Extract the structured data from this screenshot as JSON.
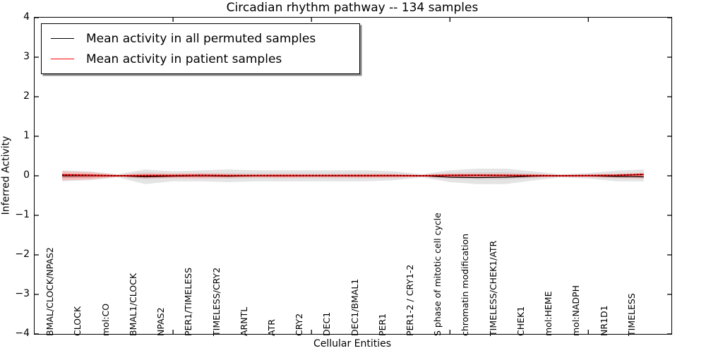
{
  "figure": {
    "background": "#ffffff"
  },
  "chart_data": {
    "type": "line",
    "title": "Circadian rhythm pathway -- 134 samples",
    "xlabel": "Cellular Entities",
    "ylabel": "Inferred Activity",
    "ylim": [
      -4,
      4
    ],
    "xlim": [
      0,
      23
    ],
    "grid": false,
    "legend_position": "upper-left",
    "ytick_values": [
      4,
      3,
      2,
      1,
      0,
      -1,
      -2,
      -3,
      -4
    ],
    "ytick_labels": [
      "4",
      "3",
      "2",
      "1",
      "0",
      "−1",
      "−2",
      "−3",
      "−4"
    ],
    "xtick_positions": [
      5,
      10,
      15,
      20
    ],
    "entities": [
      "BMAL/CLOCK/NPAS2",
      "CLOCK",
      "mol:CO",
      "BMAL1/CLOCK",
      "NPAS2",
      "PER1/TIMELESS",
      "TIMELESS/CRY2",
      "ARNTL",
      "ATR",
      "CRY2",
      "DEC1",
      "DEC1/BMAL1",
      "PER1",
      "PER1-2 / CRY1-2",
      "S phase of mitotic cell cycle",
      "chromatin modification",
      "TIMELESS/CHEK1/ATR",
      "CHEK1",
      "mol:HEME",
      "mol:NADPH",
      "NR1D1",
      "TIMELESS"
    ],
    "legend": [
      {
        "label": "Mean activity in all permuted samples",
        "color": "#000000"
      },
      {
        "label": "Mean activity in patient samples",
        "color": "#ff0000"
      }
    ],
    "series": [
      {
        "name": "Mean activity in all permuted samples",
        "color": "#000000",
        "style": "solid",
        "values": [
          0,
          0,
          0,
          -0.027,
          -0.01,
          0,
          -0.01,
          0,
          0,
          0,
          0,
          0,
          0,
          0,
          -0.036,
          -0.044,
          -0.036,
          -0.01,
          0,
          0,
          -0.018,
          -0.027
        ]
      },
      {
        "name": "Mean activity in patient samples",
        "color": "#ff0000",
        "style": "solid+black-dotted-overlay",
        "values": [
          0.02,
          0.01,
          0,
          0.005,
          0.005,
          0.01,
          0.005,
          0.005,
          0.005,
          0.005,
          0.005,
          0.005,
          0.005,
          0,
          0.01,
          0.015,
          0.01,
          0.005,
          0,
          0.005,
          0.01,
          0.035
        ]
      }
    ],
    "bands": [
      {
        "name": "permuted-envelope-outer",
        "color": "#e4e4e4",
        "upper": [
          0.14,
          0.11,
          0.04,
          0.16,
          0.11,
          0.14,
          0.16,
          0.14,
          0.14,
          0.14,
          0.14,
          0.14,
          0.11,
          0.04,
          0.14,
          0.18,
          0.18,
          0.11,
          0.04,
          0.07,
          0.13,
          0.16
        ],
        "lower": [
          0.14,
          0.11,
          0.04,
          0.21,
          0.14,
          0.14,
          0.16,
          0.14,
          0.14,
          0.14,
          0.14,
          0.14,
          0.11,
          0.04,
          0.16,
          0.21,
          0.21,
          0.12,
          0.04,
          0.07,
          0.14,
          0.14
        ]
      },
      {
        "name": "permuted-envelope-inner",
        "color": "#d3d3d3",
        "upper": [
          0.07,
          0.055,
          0.02,
          0.09,
          0.055,
          0.07,
          0.07,
          0.06,
          0.06,
          0.06,
          0.06,
          0.06,
          0.055,
          0.02,
          0.07,
          0.09,
          0.09,
          0.055,
          0.02,
          0.035,
          0.06,
          0.07
        ],
        "lower": [
          0.07,
          0.055,
          0.02,
          0.09,
          0.055,
          0.07,
          0.07,
          0.06,
          0.06,
          0.06,
          0.06,
          0.06,
          0.055,
          0.02,
          0.07,
          0.09,
          0.09,
          0.055,
          0.02,
          0.035,
          0.06,
          0.07
        ]
      },
      {
        "name": "patient-envelope-outer",
        "color": "#f3bebe",
        "upper": [
          0.11,
          0.09,
          0.027,
          0.07,
          0.06,
          0.07,
          0.055,
          0.045,
          0.055,
          0.045,
          0.045,
          0.055,
          0.045,
          0.027,
          0.06,
          0.06,
          0.055,
          0.045,
          0.027,
          0.035,
          0.055,
          0.07
        ],
        "lower": [
          0.11,
          0.09,
          0.027,
          0.07,
          0.06,
          0.07,
          0.055,
          0.045,
          0.055,
          0.045,
          0.045,
          0.055,
          0.045,
          0.027,
          0.06,
          0.06,
          0.055,
          0.045,
          0.027,
          0.035,
          0.055,
          0.07
        ]
      },
      {
        "name": "patient-envelope-inner",
        "color": "#e98f8f",
        "upper": [
          0.055,
          0.045,
          0.014,
          0.035,
          0.03,
          0.035,
          0.027,
          0.02,
          0.027,
          0.02,
          0.02,
          0.027,
          0.02,
          0.014,
          0.03,
          0.03,
          0.027,
          0.02,
          0.014,
          0.018,
          0.027,
          0.035
        ],
        "lower": [
          0.055,
          0.045,
          0.014,
          0.035,
          0.03,
          0.035,
          0.027,
          0.02,
          0.027,
          0.02,
          0.02,
          0.027,
          0.02,
          0.014,
          0.03,
          0.03,
          0.027,
          0.02,
          0.014,
          0.018,
          0.027,
          0.035
        ]
      }
    ]
  }
}
